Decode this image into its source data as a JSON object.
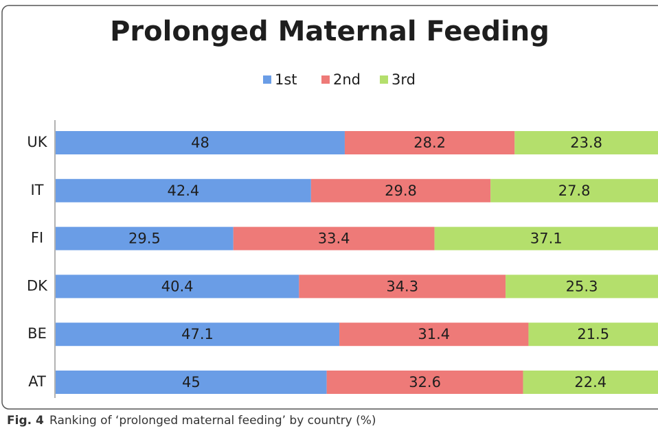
{
  "chart_data": {
    "type": "stacked-barh",
    "title": "Prolonged Maternal Feeding",
    "categories": [
      "UK",
      "IT",
      "FI",
      "DK",
      "BE",
      "AT"
    ],
    "series": [
      {
        "name": "1st",
        "color": "#6a9de6",
        "values": [
          48,
          42.4,
          29.5,
          40.4,
          47.1,
          45
        ]
      },
      {
        "name": "2nd",
        "color": "#ee7a78",
        "values": [
          28.2,
          29.8,
          33.4,
          34.3,
          31.4,
          32.6
        ]
      },
      {
        "name": "3rd",
        "color": "#b4df6c",
        "values": [
          23.8,
          27.8,
          37.1,
          25.3,
          21.5,
          22.4
        ]
      }
    ],
    "xlim": [
      0,
      100
    ],
    "legend": "top"
  },
  "caption": {
    "label": "Fig. 4",
    "text": "Ranking of ‘prolonged maternal feeding’ by country (%)"
  }
}
